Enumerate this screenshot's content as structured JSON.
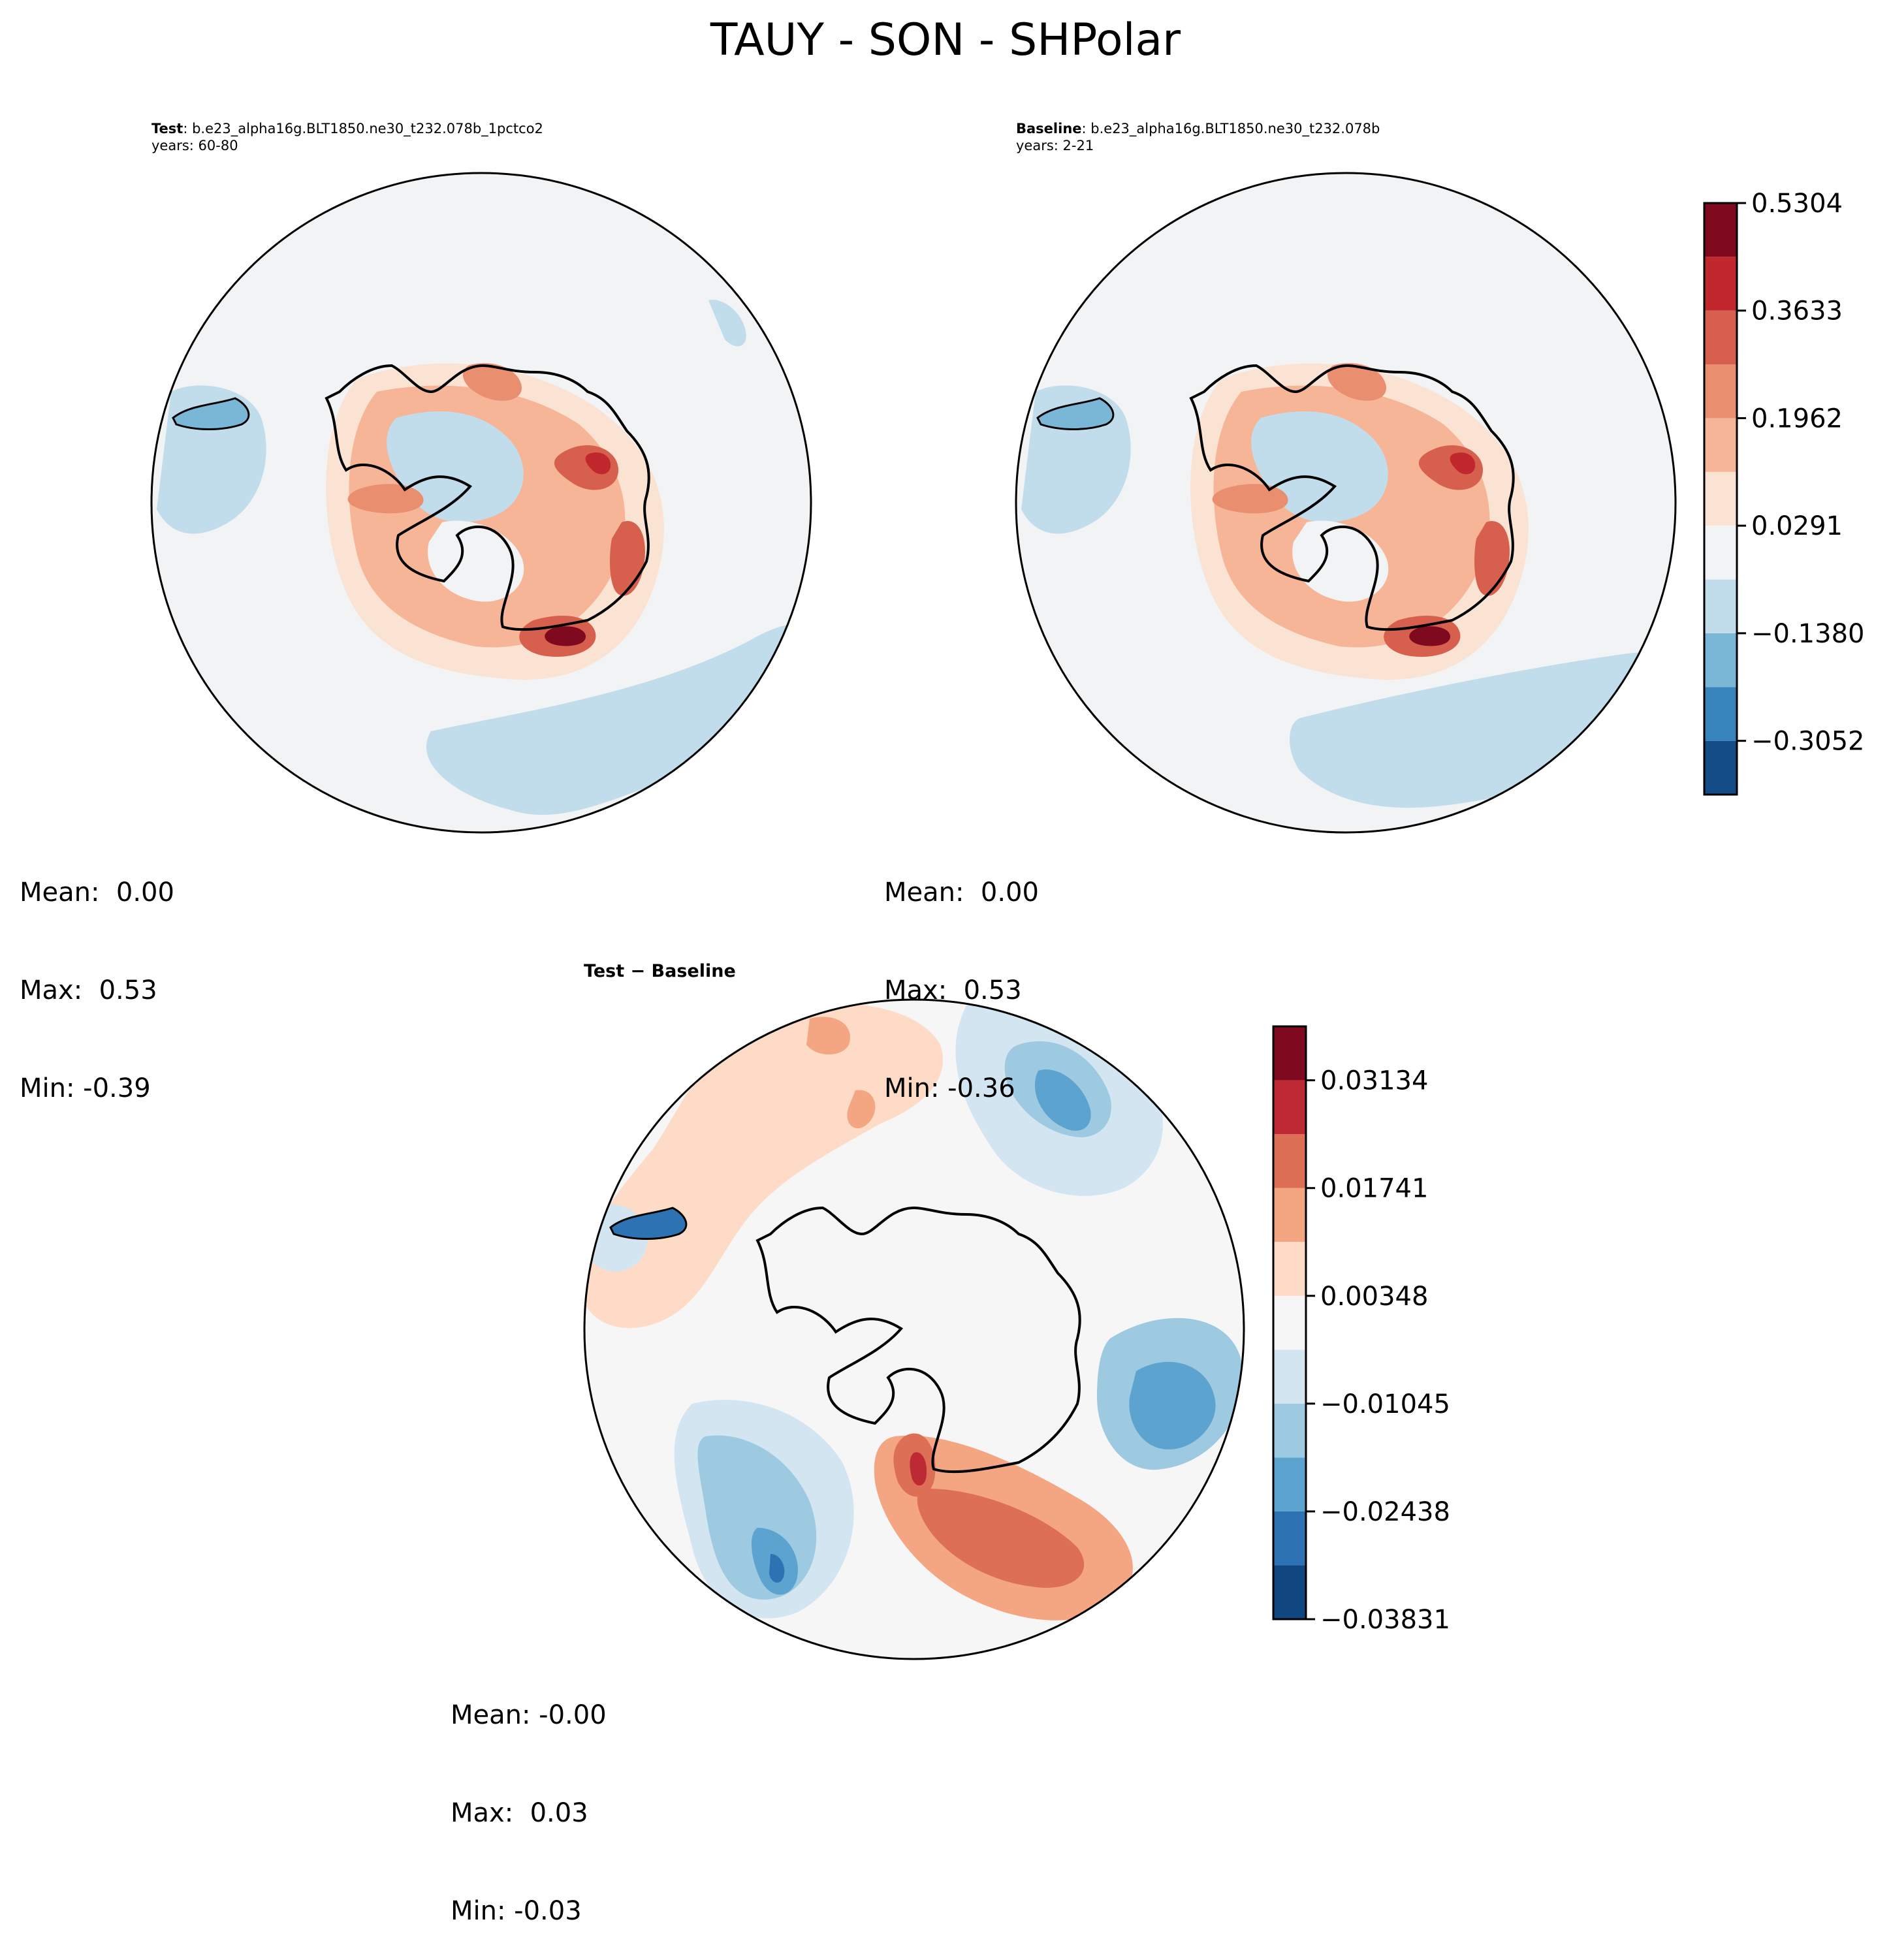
{
  "figure": {
    "title": "TAUY - SON - SHPolar"
  },
  "panels": [
    {
      "id": "test",
      "label_bold": "Test",
      "case_name": ": b.e23_alpha16g.BLT1850.ne30_t232.078b_1pctco2",
      "years": "years: 60-80",
      "stats": {
        "mean": "Mean:  0.00",
        "max": "Max:  0.53",
        "min": "Min: -0.39"
      }
    },
    {
      "id": "baseline",
      "label_bold": "Baseline",
      "case_name": ": b.e23_alpha16g.BLT1850.ne30_t232.078b",
      "years": "years: 2-21",
      "stats": {
        "mean": "Mean:  0.00",
        "max": "Max:  0.53",
        "min": "Min: -0.36"
      }
    },
    {
      "id": "difference",
      "label_bold": "Test − Baseline",
      "stats": {
        "mean": "Mean: -0.00",
        "max": "Max:  0.03",
        "min": "Min: -0.03"
      }
    }
  ],
  "chart_data": [
    {
      "type": "heatmap",
      "projection": "south-polar-stereographic",
      "panels": [
        "test",
        "baseline"
      ],
      "colormap": "RdBu_r",
      "levels": [
        -0.3887,
        -0.3052,
        -0.2216,
        -0.138,
        -0.0545,
        0.0291,
        0.1127,
        0.1962,
        0.2798,
        0.3633,
        0.4469,
        0.5304
      ],
      "colorbar_ticks": [
        "0.5304",
        "0.3633",
        "0.1962",
        "0.0291",
        "−0.1380",
        "−0.3052"
      ],
      "colorbar_tick_values": [
        0.5304,
        0.3633,
        0.1962,
        0.0291,
        -0.138,
        -0.3052
      ],
      "colorbar_colors": [
        "#144c87",
        "#3783bb",
        "#7ab6d6",
        "#c1ddec",
        "#f2f3f4",
        "#fbe3d4",
        "#f7b597",
        "#ea8e70",
        "#d65f4d",
        "#c0282e",
        "#7f0a20"
      ]
    },
    {
      "type": "heatmap",
      "projection": "south-polar-stereographic",
      "panels": [
        "difference"
      ],
      "colormap": "RdBu_r",
      "levels": [
        -0.03831,
        -0.03134,
        -0.02438,
        -0.01741,
        -0.01045,
        -0.00348,
        0.00348,
        0.01045,
        0.01741,
        0.02438,
        0.03134,
        0.03831
      ],
      "colorbar_ticks": [
        "0.03134",
        "0.01741",
        "0.00348",
        "−0.01045",
        "−0.02438",
        "−0.03831"
      ],
      "colorbar_tick_values": [
        0.03134,
        0.01741,
        0.00348,
        -0.01045,
        -0.02438,
        -0.03831
      ],
      "colorbar_colors": [
        "#114781",
        "#2d73b3",
        "#5ca3cf",
        "#9ecae1",
        "#d3e5f0",
        "#f6f6f6",
        "#fddbc7",
        "#f4a582",
        "#de6f57",
        "#be2a33",
        "#7f0a20"
      ]
    }
  ]
}
